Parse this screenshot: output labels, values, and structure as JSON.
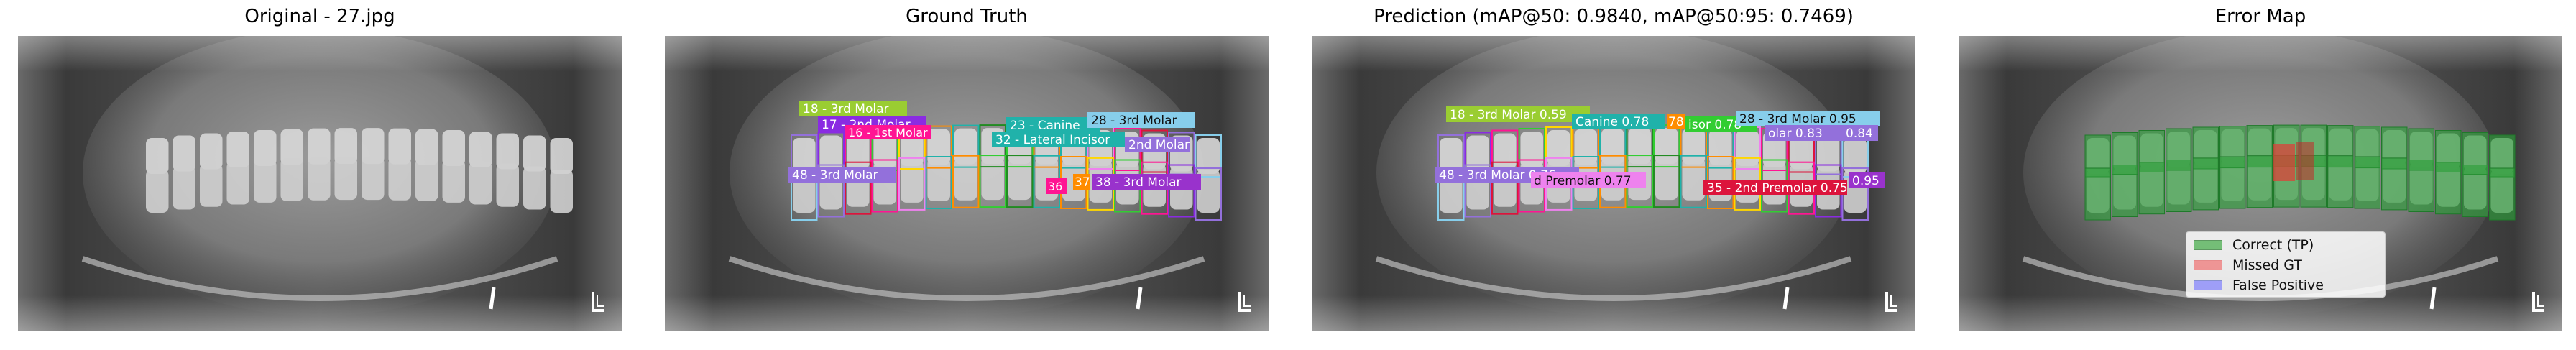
{
  "panels": [
    {
      "key": "original",
      "title": "Original - 27.jpg"
    },
    {
      "key": "gt",
      "title": "Ground Truth"
    },
    {
      "key": "pred",
      "title": "Prediction (mAP@50: 0.9840, mAP@50:95: 0.7469)"
    },
    {
      "key": "error",
      "title": "Error Map"
    }
  ],
  "gt_labels": [
    {
      "text": "18 - 3rd Molar",
      "color": "#9acd32"
    },
    {
      "text": "17 - 2nd Molar",
      "color": "#8a2be2"
    },
    {
      "text": "16 - 1st Molar",
      "color": "#ff1493"
    },
    {
      "text": "23 - Canine",
      "color": "#20b2aa"
    },
    {
      "text": "28 - 3rd Molar",
      "color": "#87ceeb"
    },
    {
      "text": "32 - Lateral Incisor",
      "color": "#20b2aa"
    },
    {
      "text": "2nd Molar",
      "color": "#9370db"
    },
    {
      "text": "48 - 3rd Molar",
      "color": "#9370db"
    },
    {
      "text": "37",
      "color": "#ff8c00"
    },
    {
      "text": "38 - 3rd Molar",
      "color": "#9932cc"
    },
    {
      "text": "36",
      "color": "#ff1493"
    }
  ],
  "pred_labels": [
    {
      "text": "18 - 3rd Molar 0.59",
      "color": "#9acd32"
    },
    {
      "text": "Canine 0.78",
      "color": "#20b2aa"
    },
    {
      "text": "78",
      "color": "#ff8c00"
    },
    {
      "text": "isor 0.78",
      "color": "#32cd32"
    },
    {
      "text": "28 - 3rd Molar 0.95",
      "color": "#87ceeb"
    },
    {
      "text": "olar 0.83",
      "color": "#9370db"
    },
    {
      "text": "0.84",
      "color": "#9370db"
    },
    {
      "text": "48 - 3rd Molar 0.76",
      "color": "#9370db"
    },
    {
      "text": "d Premolar 0.77",
      "color": "#ee82ee"
    },
    {
      "text": "35 - 2nd Premolar 0.75",
      "color": "#dc143c"
    },
    {
      "text": "0.95",
      "color": "#9932cc"
    }
  ],
  "legend": [
    {
      "label": "Correct (TP)",
      "color": "#4caf50"
    },
    {
      "label": "Missed GT",
      "color": "#f08080"
    },
    {
      "label": "False Positive",
      "color": "#8080ff"
    }
  ]
}
